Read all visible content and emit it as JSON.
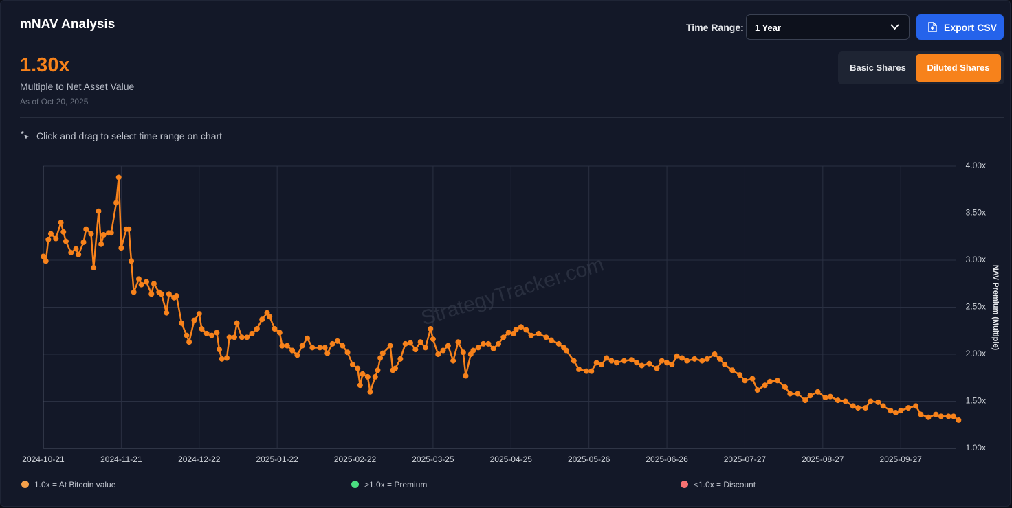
{
  "header": {
    "title": "mNAV Analysis",
    "time_range_label": "Time Range:",
    "time_range_value": "1 Year",
    "export_button": "Export CSV"
  },
  "summary": {
    "value": "1.30x",
    "label": "Multiple to Net Asset Value",
    "as_of": "As of Oct 20, 2025"
  },
  "share_toggle": {
    "options": [
      "Basic Shares",
      "Diluted Shares"
    ],
    "active": 1
  },
  "hint": "Click and drag to select time range on chart",
  "chart_data": {
    "type": "line",
    "color": "#f7821b",
    "watermark": "StrategyTracker.com",
    "y_label": "NAV Premium (Multiple)",
    "grid": true,
    "xlim": [
      "2024-10-21",
      "2025-10-21"
    ],
    "xticks": [
      "2024-10-21",
      "2024-11-21",
      "2024-12-22",
      "2025-01-22",
      "2025-02-22",
      "2025-03-25",
      "2025-04-25",
      "2025-05-26",
      "2025-06-26",
      "2025-07-27",
      "2025-08-27",
      "2025-09-27"
    ],
    "ylim": [
      1,
      4
    ],
    "yticks": [
      {
        "value": 1,
        "label": "1.00x"
      },
      {
        "value": 1.5,
        "label": "1.50x"
      },
      {
        "value": 2,
        "label": "2.00x"
      },
      {
        "value": 2.5,
        "label": "2.50x"
      },
      {
        "value": 3,
        "label": "3.00x"
      },
      {
        "value": 3.5,
        "label": "3.50x"
      },
      {
        "value": 4,
        "label": "4.00x"
      }
    ],
    "x": [
      "2024-10-21",
      "2024-10-22",
      "2024-10-23",
      "2024-10-24",
      "2024-10-26",
      "2024-10-28",
      "2024-10-29",
      "2024-10-30",
      "2024-11-01",
      "2024-11-03",
      "2024-11-04",
      "2024-11-06",
      "2024-11-07",
      "2024-11-09",
      "2024-11-10",
      "2024-11-12",
      "2024-11-13",
      "2024-11-14",
      "2024-11-16",
      "2024-11-17",
      "2024-11-19",
      "2024-11-20",
      "2024-11-21",
      "2024-11-23",
      "2024-11-24",
      "2024-11-25",
      "2024-11-26",
      "2024-11-28",
      "2024-11-29",
      "2024-12-01",
      "2024-12-03",
      "2024-12-04",
      "2024-12-06",
      "2024-12-07",
      "2024-12-09",
      "2024-12-10",
      "2024-12-12",
      "2024-12-13",
      "2024-12-15",
      "2024-12-17",
      "2024-12-18",
      "2024-12-20",
      "2024-12-22",
      "2024-12-23",
      "2024-12-25",
      "2024-12-27",
      "2024-12-29",
      "2024-12-30",
      "2024-12-31",
      "2025-01-02",
      "2025-01-03",
      "2025-01-05",
      "2025-01-06",
      "2025-01-08",
      "2025-01-10",
      "2025-01-12",
      "2025-01-14",
      "2025-01-16",
      "2025-01-18",
      "2025-01-19",
      "2025-01-21",
      "2025-01-23",
      "2025-01-24",
      "2025-01-26",
      "2025-01-28",
      "2025-01-30",
      "2025-02-01",
      "2025-02-03",
      "2025-02-05",
      "2025-02-08",
      "2025-02-10",
      "2025-02-11",
      "2025-02-13",
      "2025-02-15",
      "2025-02-17",
      "2025-02-19",
      "2025-02-21",
      "2025-02-23",
      "2025-02-24",
      "2025-02-25",
      "2025-02-27",
      "2025-02-28",
      "2025-03-02",
      "2025-03-03",
      "2025-03-04",
      "2025-03-05",
      "2025-03-08",
      "2025-03-09",
      "2025-03-10",
      "2025-03-12",
      "2025-03-14",
      "2025-03-16",
      "2025-03-18",
      "2025-03-20",
      "2025-03-22",
      "2025-03-24",
      "2025-03-25",
      "2025-03-27",
      "2025-03-29",
      "2025-03-31",
      "2025-04-02",
      "2025-04-04",
      "2025-04-06",
      "2025-04-07",
      "2025-04-09",
      "2025-04-10",
      "2025-04-12",
      "2025-04-14",
      "2025-04-16",
      "2025-04-18",
      "2025-04-20",
      "2025-04-22",
      "2025-04-24",
      "2025-04-26",
      "2025-04-27",
      "2025-04-29",
      "2025-05-01",
      "2025-05-03",
      "2025-05-06",
      "2025-05-09",
      "2025-05-11",
      "2025-05-14",
      "2025-05-16",
      "2025-05-17",
      "2025-05-20",
      "2025-05-22",
      "2025-05-25",
      "2025-05-27",
      "2025-05-29",
      "2025-05-31",
      "2025-06-02",
      "2025-06-04",
      "2025-06-06",
      "2025-06-09",
      "2025-06-12",
      "2025-06-14",
      "2025-06-16",
      "2025-06-19",
      "2025-06-22",
      "2025-06-24",
      "2025-06-26",
      "2025-06-28",
      "2025-06-30",
      "2025-07-02",
      "2025-07-04",
      "2025-07-07",
      "2025-07-10",
      "2025-07-12",
      "2025-07-15",
      "2025-07-17",
      "2025-07-19",
      "2025-07-22",
      "2025-07-25",
      "2025-07-27",
      "2025-07-30",
      "2025-08-01",
      "2025-08-04",
      "2025-08-06",
      "2025-08-09",
      "2025-08-12",
      "2025-08-14",
      "2025-08-17",
      "2025-08-20",
      "2025-08-22",
      "2025-08-25",
      "2025-08-28",
      "2025-08-30",
      "2025-09-02",
      "2025-09-05",
      "2025-09-08",
      "2025-09-10",
      "2025-09-13",
      "2025-09-15",
      "2025-09-18",
      "2025-09-20",
      "2025-09-23",
      "2025-09-25",
      "2025-09-27",
      "2025-09-30",
      "2025-10-03",
      "2025-10-05",
      "2025-10-08",
      "2025-10-11",
      "2025-10-13",
      "2025-10-16",
      "2025-10-18",
      "2025-10-20"
    ],
    "values": [
      3.04,
      2.99,
      3.22,
      3.28,
      3.23,
      3.4,
      3.3,
      3.2,
      3.08,
      3.12,
      3.06,
      3.19,
      3.33,
      3.28,
      2.92,
      3.52,
      3.17,
      3.27,
      3.29,
      3.29,
      3.61,
      3.88,
      3.13,
      3.33,
      3.33,
      2.99,
      2.66,
      2.8,
      2.74,
      2.77,
      2.64,
      2.75,
      2.66,
      2.64,
      2.44,
      2.64,
      2.6,
      2.62,
      2.33,
      2.2,
      2.13,
      2.36,
      2.43,
      2.27,
      2.22,
      2.2,
      2.23,
      2.05,
      1.95,
      1.96,
      2.18,
      2.18,
      2.33,
      2.18,
      2.18,
      2.22,
      2.27,
      2.37,
      2.44,
      2.4,
      2.27,
      2.23,
      2.09,
      2.09,
      2.04,
      1.99,
      2.09,
      2.17,
      2.07,
      2.07,
      2.07,
      2.01,
      2.11,
      2.14,
      2.09,
      2.02,
      1.89,
      1.85,
      1.67,
      1.79,
      1.76,
      1.6,
      1.76,
      1.83,
      1.96,
      2.01,
      2.09,
      1.83,
      1.85,
      1.95,
      2.11,
      2.12,
      2.05,
      2.13,
      2.07,
      2.27,
      2.16,
      2.0,
      2.04,
      2.09,
      1.93,
      2.13,
      2.02,
      1.77,
      2.0,
      2.04,
      2.07,
      2.11,
      2.11,
      2.06,
      2.11,
      2.18,
      2.23,
      2.22,
      2.26,
      2.29,
      2.26,
      2.2,
      2.22,
      2.18,
      2.15,
      2.11,
      2.07,
      2.04,
      1.93,
      1.84,
      1.82,
      1.82,
      1.91,
      1.89,
      1.96,
      1.93,
      1.91,
      1.93,
      1.94,
      1.91,
      1.88,
      1.9,
      1.85,
      1.93,
      1.91,
      1.89,
      1.98,
      1.96,
      1.93,
      1.95,
      1.93,
      1.95,
      2.0,
      1.95,
      1.89,
      1.83,
      1.78,
      1.72,
      1.74,
      1.62,
      1.67,
      1.71,
      1.72,
      1.65,
      1.58,
      1.58,
      1.51,
      1.56,
      1.6,
      1.54,
      1.55,
      1.51,
      1.5,
      1.45,
      1.43,
      1.43,
      1.5,
      1.49,
      1.45,
      1.4,
      1.38,
      1.4,
      1.43,
      1.45,
      1.36,
      1.33,
      1.36,
      1.34,
      1.34,
      1.34,
      1.3
    ],
    "legend_items": [
      {
        "label": "1.0x = At Bitcoin value",
        "color": "#f5a04a"
      },
      {
        "label": ">1.0x = Premium",
        "color": "#4ade80"
      },
      {
        "label": "<1.0x = Discount",
        "color": "#f87171"
      }
    ]
  }
}
